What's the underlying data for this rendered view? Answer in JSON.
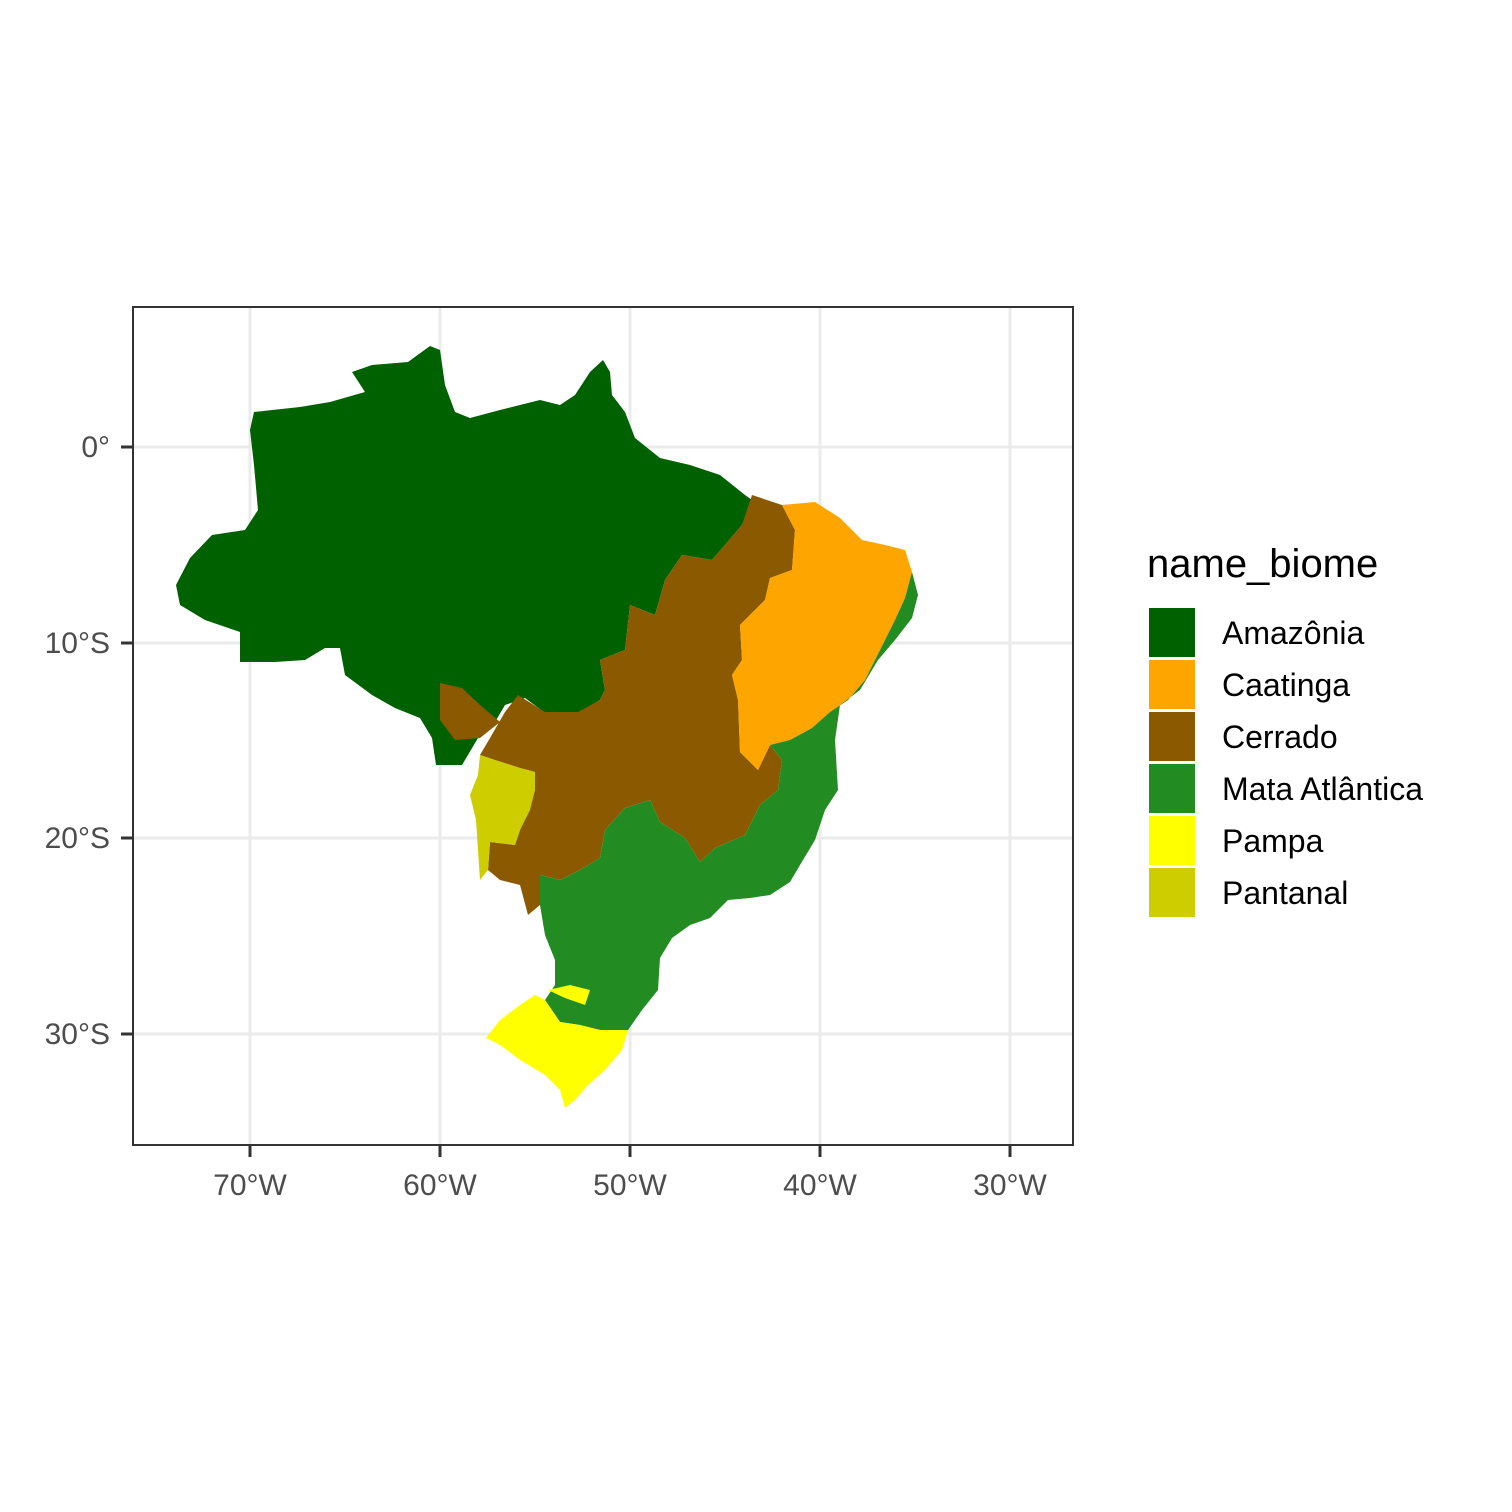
{
  "map": {
    "x_ticks": [
      "70°W",
      "60°W",
      "50°W",
      "40°W",
      "30°W"
    ],
    "y_ticks": [
      "0°",
      "10°S",
      "20°S",
      "30°S"
    ],
    "legend": {
      "title": "name_biome",
      "items": [
        {
          "label": "Amazônia",
          "color": "#006100"
        },
        {
          "label": "Caatinga",
          "color": "#FFA500"
        },
        {
          "label": "Cerrado",
          "color": "#8B5A00"
        },
        {
          "label": "Mata Atlântica",
          "color": "#228B22"
        },
        {
          "label": "Pampa",
          "color": "#FFFF00"
        },
        {
          "label": "Pantanal",
          "color": "#CDCD00"
        }
      ]
    }
  }
}
